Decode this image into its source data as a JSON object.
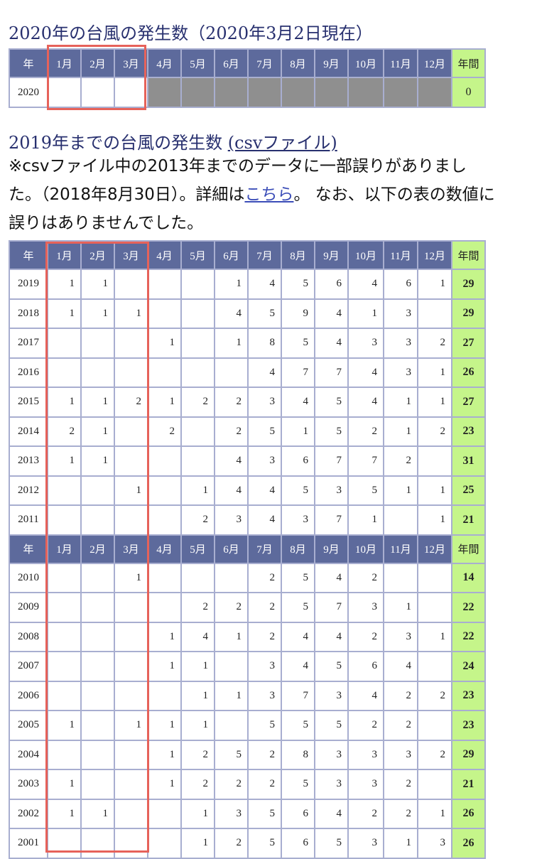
{
  "section2020": {
    "title": "2020年の台風の発生数（2020年3月2日現在）",
    "headers": [
      "年",
      "1月",
      "2月",
      "3月",
      "4月",
      "5月",
      "6月",
      "7月",
      "8月",
      "9月",
      "10月",
      "11月",
      "12月",
      "年間"
    ],
    "rows": [
      {
        "year": "2020",
        "months": [
          "",
          "",
          "",
          "",
          "",
          "",
          "",
          "",
          "",
          "",
          "",
          ""
        ],
        "total": "0",
        "future_from": 3
      }
    ]
  },
  "section2019": {
    "title": "2019年までの台風の発生数 ",
    "link": "(csvファイル)",
    "note_before": "※csvファイル中の2013年までのデータに一部誤りがありました。（2018年8月30日）。詳細は",
    "note_link": "こちら",
    "note_after": "。 なお、以下の表の数値に誤りはありませんでした。",
    "headers": [
      "年",
      "1月",
      "2月",
      "3月",
      "4月",
      "5月",
      "6月",
      "7月",
      "8月",
      "9月",
      "10月",
      "11月",
      "12月",
      "年間"
    ],
    "rows_a": [
      {
        "year": "2019",
        "months": [
          "1",
          "1",
          "",
          "",
          "",
          "1",
          "4",
          "5",
          "6",
          "4",
          "6",
          "1"
        ],
        "total": "29"
      },
      {
        "year": "2018",
        "months": [
          "1",
          "1",
          "1",
          "",
          "",
          "4",
          "5",
          "9",
          "4",
          "1",
          "3",
          ""
        ],
        "total": "29"
      },
      {
        "year": "2017",
        "months": [
          "",
          "",
          "",
          "1",
          "",
          "1",
          "8",
          "5",
          "4",
          "3",
          "3",
          "2"
        ],
        "total": "27"
      },
      {
        "year": "2016",
        "months": [
          "",
          "",
          "",
          "",
          "",
          "",
          "4",
          "7",
          "7",
          "4",
          "3",
          "1"
        ],
        "total": "26"
      },
      {
        "year": "2015",
        "months": [
          "1",
          "1",
          "2",
          "1",
          "2",
          "2",
          "3",
          "4",
          "5",
          "4",
          "1",
          "1"
        ],
        "total": "27"
      },
      {
        "year": "2014",
        "months": [
          "2",
          "1",
          "",
          "2",
          "",
          "2",
          "5",
          "1",
          "5",
          "2",
          "1",
          "2"
        ],
        "total": "23"
      },
      {
        "year": "2013",
        "months": [
          "1",
          "1",
          "",
          "",
          "",
          "4",
          "3",
          "6",
          "7",
          "7",
          "2",
          ""
        ],
        "total": "31"
      },
      {
        "year": "2012",
        "months": [
          "",
          "",
          "1",
          "",
          "1",
          "4",
          "4",
          "5",
          "3",
          "5",
          "1",
          "1"
        ],
        "total": "25"
      },
      {
        "year": "2011",
        "months": [
          "",
          "",
          "",
          "",
          "2",
          "3",
          "4",
          "3",
          "7",
          "1",
          "",
          "1"
        ],
        "total": "21"
      }
    ],
    "rows_b": [
      {
        "year": "2010",
        "months": [
          "",
          "",
          "1",
          "",
          "",
          "",
          "2",
          "5",
          "4",
          "2",
          "",
          ""
        ],
        "total": "14"
      },
      {
        "year": "2009",
        "months": [
          "",
          "",
          "",
          "",
          "2",
          "2",
          "2",
          "5",
          "7",
          "3",
          "1",
          ""
        ],
        "total": "22"
      },
      {
        "year": "2008",
        "months": [
          "",
          "",
          "",
          "1",
          "4",
          "1",
          "2",
          "4",
          "4",
          "2",
          "3",
          "1"
        ],
        "total": "22"
      },
      {
        "year": "2007",
        "months": [
          "",
          "",
          "",
          "1",
          "1",
          "",
          "3",
          "4",
          "5",
          "6",
          "4",
          ""
        ],
        "total": "24"
      },
      {
        "year": "2006",
        "months": [
          "",
          "",
          "",
          "",
          "1",
          "1",
          "3",
          "7",
          "3",
          "4",
          "2",
          "2"
        ],
        "total": "23"
      },
      {
        "year": "2005",
        "months": [
          "1",
          "",
          "1",
          "1",
          "1",
          "",
          "5",
          "5",
          "5",
          "2",
          "2",
          ""
        ],
        "total": "23"
      },
      {
        "year": "2004",
        "months": [
          "",
          "",
          "",
          "1",
          "2",
          "5",
          "2",
          "8",
          "3",
          "3",
          "3",
          "2"
        ],
        "total": "29"
      },
      {
        "year": "2003",
        "months": [
          "1",
          "",
          "",
          "1",
          "2",
          "2",
          "2",
          "5",
          "3",
          "3",
          "2",
          ""
        ],
        "total": "21"
      },
      {
        "year": "2002",
        "months": [
          "1",
          "1",
          "",
          "",
          "1",
          "3",
          "5",
          "6",
          "4",
          "2",
          "2",
          "1"
        ],
        "total": "26"
      },
      {
        "year": "2001",
        "months": [
          "",
          "",
          "",
          "",
          "1",
          "2",
          "5",
          "6",
          "5",
          "3",
          "1",
          "3"
        ],
        "total": "26"
      }
    ]
  },
  "colors": {
    "header": "#5d6a9c",
    "total": "#c5f58a",
    "future": "#8f8f8f",
    "highlight": "#e6625a",
    "title": "#28306f"
  }
}
